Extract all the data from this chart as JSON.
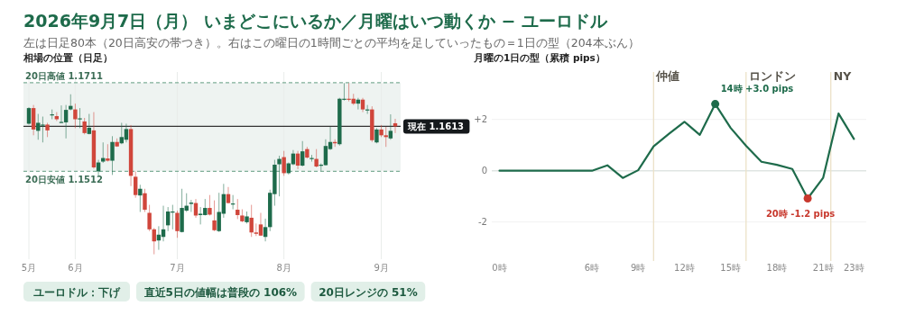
{
  "chart_data": [
    {
      "type": "other",
      "title": "2026年9月7日（月） いまどこにいるか／月曜はいつ動くか − ユーロドル",
      "subtitle": "左は日足80本（20日高安の帯つき）。右はこの曜日の1時間ごとの平均を足していったもの＝1日の型（204本ぶん）",
      "annotations": [
        "ユーロドル：下げ",
        "直近5日の値幅は普段の 106%",
        "20日レンジの 51%"
      ]
    },
    {
      "type": "candlestick",
      "title": "相場の位置（日足）",
      "categories": [
        "5月",
        null,
        null,
        null,
        null,
        null,
        null,
        null,
        null,
        null,
        "6月",
        null,
        null,
        null,
        null,
        null,
        null,
        null,
        null,
        null,
        null,
        null,
        null,
        null,
        null,
        null,
        null,
        null,
        null,
        null,
        null,
        null,
        "7月",
        null,
        null,
        null,
        null,
        null,
        null,
        null,
        null,
        null,
        null,
        null,
        null,
        null,
        null,
        null,
        null,
        null,
        null,
        null,
        null,
        null,
        null,
        "8月",
        null,
        null,
        null,
        null,
        null,
        null,
        null,
        null,
        null,
        null,
        null,
        null,
        null,
        null,
        null,
        null,
        null,
        null,
        null,
        null,
        "9月",
        null,
        null,
        null
      ],
      "ohlc": [
        [
          1.1619,
          1.1656,
          1.1617,
          1.1654
        ],
        [
          1.1654,
          1.1661,
          1.1593,
          1.1606
        ],
        [
          1.1603,
          1.1641,
          1.1583,
          1.1621
        ],
        [
          1.1616,
          1.1635,
          1.1577,
          1.1617
        ],
        [
          1.1617,
          1.1621,
          1.1589,
          1.1604
        ],
        [
          1.1638,
          1.1651,
          1.1629,
          1.164
        ],
        [
          1.1636,
          1.1645,
          1.1625,
          1.1629
        ],
        [
          1.1622,
          1.166,
          1.1621,
          1.1623
        ],
        [
          1.1622,
          1.1661,
          1.1586,
          1.165
        ],
        [
          1.1651,
          1.1685,
          1.1649,
          1.1659
        ],
        [
          1.1651,
          1.1664,
          1.1609,
          1.1629
        ],
        [
          1.1629,
          1.1654,
          1.1609,
          1.1631
        ],
        [
          1.1624,
          1.1632,
          1.1595,
          1.1598
        ],
        [
          1.1596,
          1.1641,
          1.1595,
          1.161
        ],
        [
          1.1604,
          1.1645,
          1.1518,
          1.1521
        ],
        [
          1.1512,
          1.1538,
          1.15,
          1.1532
        ],
        [
          1.1534,
          1.1577,
          1.1531,
          1.1542
        ],
        [
          1.1541,
          1.1573,
          1.1534,
          1.1536
        ],
        [
          1.1536,
          1.1591,
          1.1504,
          1.1578
        ],
        [
          1.1578,
          1.1586,
          1.1567,
          1.1568
        ],
        [
          1.1575,
          1.1621,
          1.1573,
          1.1589
        ],
        [
          1.1583,
          1.1619,
          1.1577,
          1.1607
        ],
        [
          1.1607,
          1.1616,
          1.1479,
          1.1502
        ],
        [
          1.15,
          1.1512,
          1.1453,
          1.1459
        ],
        [
          1.1458,
          1.1482,
          1.1421,
          1.1473
        ],
        [
          1.1463,
          1.1473,
          1.1421,
          1.1426
        ],
        [
          1.1419,
          1.1437,
          1.1378,
          1.1382
        ],
        [
          1.1382,
          1.1385,
          1.1326,
          1.1355
        ],
        [
          1.1357,
          1.1389,
          1.1336,
          1.137
        ],
        [
          1.1365,
          1.1435,
          1.1355,
          1.1382
        ],
        [
          1.1391,
          1.1432,
          1.1378,
          1.1422
        ],
        [
          1.1421,
          1.1437,
          1.1382,
          1.1422
        ],
        [
          1.1419,
          1.1424,
          1.1363,
          1.1378
        ],
        [
          1.1376,
          1.1473,
          1.1375,
          1.143
        ],
        [
          1.1424,
          1.1463,
          1.1421,
          1.1435
        ],
        [
          1.1439,
          1.1448,
          1.1421,
          1.1442
        ],
        [
          1.1441,
          1.145,
          1.1408,
          1.1413
        ],
        [
          1.1414,
          1.1432,
          1.1393,
          1.1417
        ],
        [
          1.1414,
          1.145,
          1.1413,
          1.143
        ],
        [
          1.143,
          1.1459,
          1.1413,
          1.1415
        ],
        [
          1.1402,
          1.1447,
          1.1378,
          1.138
        ],
        [
          1.1378,
          1.1464,
          1.1376,
          1.1421
        ],
        [
          1.1417,
          1.1484,
          1.1408,
          1.1461
        ],
        [
          1.1461,
          1.1477,
          1.144,
          1.1441
        ],
        [
          1.1439,
          1.1459,
          1.1427,
          1.144
        ],
        [
          1.1426,
          1.145,
          1.1405,
          1.1414
        ],
        [
          1.1413,
          1.1427,
          1.1398,
          1.14
        ],
        [
          1.1398,
          1.1422,
          1.1395,
          1.1411
        ],
        [
          1.1408,
          1.1437,
          1.1365,
          1.1375
        ],
        [
          1.1375,
          1.1395,
          1.1367,
          1.1372
        ],
        [
          1.1393,
          1.1419,
          1.1367,
          1.1368
        ],
        [
          1.1365,
          1.1406,
          1.1355,
          1.1387
        ],
        [
          1.1387,
          1.1471,
          1.1378,
          1.1464
        ],
        [
          1.1461,
          1.1538,
          1.1435,
          1.1527
        ],
        [
          1.1528,
          1.1547,
          1.1456,
          1.154
        ],
        [
          1.1544,
          1.1558,
          1.1502,
          1.1508
        ],
        [
          1.1508,
          1.1532,
          1.1505,
          1.153
        ],
        [
          1.1528,
          1.156,
          1.1526,
          1.1552
        ],
        [
          1.1552,
          1.1558,
          1.1517,
          1.1525
        ],
        [
          1.1525,
          1.158,
          1.1523,
          1.1557
        ],
        [
          1.1562,
          1.1567,
          1.1541,
          1.1543
        ],
        [
          1.1541,
          1.1549,
          1.1534,
          1.1542
        ],
        [
          1.154,
          1.1562,
          1.1521,
          1.1523
        ],
        [
          1.1526,
          1.153,
          1.1513,
          1.1527
        ],
        [
          1.1526,
          1.1584,
          1.1525,
          1.1569
        ],
        [
          1.1562,
          1.1612,
          1.156,
          1.1578
        ],
        [
          1.1578,
          1.1584,
          1.1567,
          1.1575
        ],
        [
          1.1573,
          1.1677,
          1.157,
          1.1675
        ],
        [
          1.1674,
          1.171,
          1.1671,
          1.1675
        ],
        [
          1.1675,
          1.171,
          1.1669,
          1.1674
        ],
        [
          1.1675,
          1.1686,
          1.1661,
          1.1664
        ],
        [
          1.1664,
          1.1677,
          1.1651,
          1.1673
        ],
        [
          1.1673,
          1.1677,
          1.1645,
          1.1651
        ],
        [
          1.1649,
          1.1661,
          1.1641,
          1.1651
        ],
        [
          1.1651,
          1.1658,
          1.1578,
          1.1582
        ],
        [
          1.1577,
          1.1609,
          1.1575,
          1.1606
        ],
        [
          1.1606,
          1.1616,
          1.1589,
          1.1593
        ],
        [
          1.1593,
          1.1612,
          1.1567,
          1.1589
        ],
        [
          1.1586,
          1.164,
          1.1583,
          1.1603
        ],
        [
          1.162,
          1.163,
          1.1598,
          1.1613
        ]
      ],
      "colors": [
        "#1e6b4b",
        "#d0463b",
        "#1e6b4b",
        "#1e6b4b",
        "#d0463b",
        "#1e6b4b",
        "#d0463b",
        "#1e6b4b",
        "#1e6b4b",
        "#1e6b4b",
        "#d0463b",
        "#1e6b4b",
        "#d0463b",
        "#1e6b4b",
        "#d0463b",
        "#1e6b4b",
        "#1e6b4b",
        "#d0463b",
        "#1e6b4b",
        "#d0463b",
        "#1e6b4b",
        "#1e6b4b",
        "#d0463b",
        "#d0463b",
        "#1e6b4b",
        "#d0463b",
        "#d0463b",
        "#d0463b",
        "#1e6b4b",
        "#1e6b4b",
        "#1e6b4b",
        "#1e6b4b",
        "#d0463b",
        "#1e6b4b",
        "#1e6b4b",
        "#1e6b4b",
        "#d0463b",
        "#1e6b4b",
        "#1e6b4b",
        "#d0463b",
        "#d0463b",
        "#1e6b4b",
        "#1e6b4b",
        "#d0463b",
        "#1e6b4b",
        "#d0463b",
        "#d0463b",
        "#1e6b4b",
        "#d0463b",
        "#d0463b",
        "#d0463b",
        "#1e6b4b",
        "#1e6b4b",
        "#1e6b4b",
        "#1e6b4b",
        "#d0463b",
        "#1e6b4b",
        "#1e6b4b",
        "#d0463b",
        "#1e6b4b",
        "#d0463b",
        "#1e6b4b",
        "#d0463b",
        "#1e6b4b",
        "#1e6b4b",
        "#1e6b4b",
        "#d0463b",
        "#1e6b4b",
        "#1e6b4b",
        "#d0463b",
        "#d0463b",
        "#1e6b4b",
        "#d0463b",
        "#1e6b4b",
        "#d0463b",
        "#1e6b4b",
        "#d0463b",
        "#d0463b",
        "#1e6b4b",
        "#d0463b"
      ],
      "ylim": [
        1.1315,
        1.1735
      ],
      "tick_labels": "x",
      "grid": "x",
      "bands": [
        {
          "axis": "y",
          "from": 1.1512,
          "to": 1.1711,
          "color": "#eef3f1"
        }
      ],
      "ref_lines": [
        {
          "axis": "y",
          "value": 1.1711,
          "label": "20日高値 1.1711",
          "color": "#7fae98",
          "line_style": "dashed"
        },
        {
          "axis": "y",
          "value": 1.1512,
          "label": "20日安値 1.1512",
          "color": "#7fae98",
          "line_style": "dashed"
        },
        {
          "axis": "y",
          "value": 1.1613,
          "label": "現在 1.1613",
          "color": "#333333",
          "line_style": "solid"
        }
      ]
    },
    {
      "type": "line",
      "title": "月曜の1日の型（累積 pips）",
      "x": [
        0,
        1,
        2,
        3,
        4,
        5,
        6,
        7,
        8,
        9,
        10,
        11,
        12,
        13,
        14,
        15,
        16,
        17,
        18,
        19,
        20,
        21,
        22,
        23
      ],
      "series": [
        {
          "type": "line",
          "color": "#1e6b4b",
          "values": [
            0,
            0,
            0,
            0,
            0,
            0,
            0,
            0.21,
            -0.28,
            0.02,
            0.95,
            1.44,
            1.91,
            1.4,
            2.6,
            1.67,
            0.97,
            0.35,
            0.23,
            0.07,
            -1.08,
            -0.28,
            2.23,
            1.24
          ]
        },
        {
          "type": "scatter",
          "x": [
            14
          ],
          "color": "#1e6b4b",
          "values": [
            2.6
          ]
        },
        {
          "type": "scatter",
          "x": [
            20
          ],
          "color": "#c8392e",
          "values": [
            -1.08
          ]
        }
      ],
      "xlim": [
        -0.5,
        23.8
      ],
      "ylim": [
        -3.45,
        3.85
      ],
      "xticks": [
        {
          "value": 0,
          "label": "0時"
        },
        {
          "value": 6,
          "label": "6時"
        },
        {
          "value": 9,
          "label": "9時"
        },
        {
          "value": 12,
          "label": "12時"
        },
        {
          "value": 15,
          "label": "15時"
        },
        {
          "value": 18,
          "label": "18時"
        },
        {
          "value": 21,
          "label": "21時"
        },
        {
          "value": 23,
          "label": "23時"
        }
      ],
      "yticks": [
        {
          "value": -2,
          "label": "-2"
        },
        {
          "value": 0,
          "label": "0"
        },
        {
          "value": 2,
          "label": "+2"
        }
      ],
      "grid": "y",
      "ref_lines": [
        {
          "axis": "x",
          "value": 10,
          "label": "仲値",
          "color": "#ece2c8"
        },
        {
          "axis": "x",
          "value": 16,
          "label": "ロンドン",
          "color": "#ece2c8"
        },
        {
          "axis": "x",
          "value": 21.5,
          "label": "NY",
          "color": "#ece2c8"
        }
      ],
      "annotations": [
        {
          "text": "14時 +3.0 pips",
          "x": 14,
          "y": 2.6
        },
        {
          "text": "20時 -1.2 pips",
          "x": 20,
          "y": -1.08
        }
      ]
    }
  ]
}
